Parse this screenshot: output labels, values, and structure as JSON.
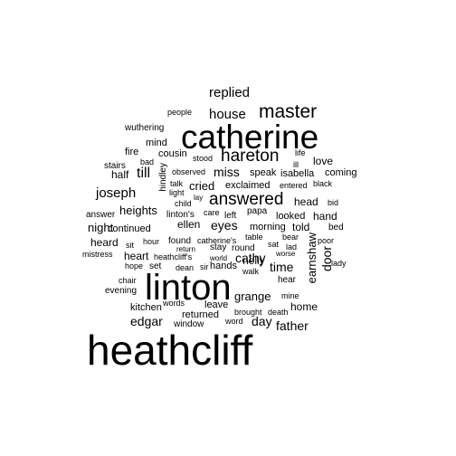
{
  "cloud": {
    "words": [
      {
        "text": "heathcliff",
        "size": 5
      },
      {
        "text": "linton",
        "size": 4
      },
      {
        "text": "catherine",
        "size": 4
      },
      {
        "text": "master",
        "size": 3
      },
      {
        "text": "hareton",
        "size": 3
      },
      {
        "text": "answered",
        "size": 3
      },
      {
        "text": "replied",
        "size": 2
      },
      {
        "text": "house",
        "size": 2
      },
      {
        "text": "joseph",
        "size": 2
      },
      {
        "text": "till",
        "size": 2
      },
      {
        "text": "miss",
        "size": 2
      },
      {
        "text": "cried",
        "size": 2
      },
      {
        "text": "eyes",
        "size": 2
      },
      {
        "text": "cathy",
        "size": 2
      },
      {
        "text": "time",
        "size": 2
      },
      {
        "text": "door",
        "size": 2
      },
      {
        "text": "edgar",
        "size": 2
      },
      {
        "text": "day",
        "size": 2
      },
      {
        "text": "father",
        "size": 2
      },
      {
        "text": "grange",
        "size": 2
      },
      {
        "text": "earnshaw",
        "size": 2
      },
      {
        "text": "heights",
        "size": 2
      },
      {
        "text": "night",
        "size": 2
      },
      {
        "text": "head",
        "size": 1
      },
      {
        "text": "love",
        "size": 1
      },
      {
        "text": "nelly",
        "size": 1
      },
      {
        "text": "ellen",
        "size": 1
      },
      {
        "text": "heard",
        "size": 1
      },
      {
        "text": "heart",
        "size": 1
      },
      {
        "text": "half",
        "size": 1
      },
      {
        "text": "home",
        "size": 1
      },
      {
        "text": "told",
        "size": 1
      },
      {
        "text": "hand",
        "size": 1
      },
      {
        "text": "kitchen",
        "size": 1
      },
      {
        "text": "returned",
        "size": 1
      },
      {
        "text": "exclaimed",
        "size": 1
      },
      {
        "text": "looked",
        "size": 1
      },
      {
        "text": "continued",
        "size": 1
      },
      {
        "text": "leave",
        "size": 1
      },
      {
        "text": "mind",
        "size": 1
      },
      {
        "text": "cousin",
        "size": 1
      },
      {
        "text": "fire",
        "size": 1
      },
      {
        "text": "isabella",
        "size": 1
      },
      {
        "text": "coming",
        "size": 1
      },
      {
        "text": "speak",
        "size": 1
      },
      {
        "text": "morning",
        "size": 1
      },
      {
        "text": "wuthering",
        "size": 0
      },
      {
        "text": "people",
        "size": 0
      },
      {
        "text": "stairs",
        "size": 0
      },
      {
        "text": "bad",
        "size": 0
      },
      {
        "text": "stood",
        "size": 0
      },
      {
        "text": "life",
        "size": 0
      },
      {
        "text": "ill",
        "size": 0
      },
      {
        "text": "observed",
        "size": 0
      },
      {
        "text": "hindley",
        "size": 0
      },
      {
        "text": "talk",
        "size": 0
      },
      {
        "text": "light",
        "size": 0
      },
      {
        "text": "lay",
        "size": 0
      },
      {
        "text": "child",
        "size": 0
      },
      {
        "text": "entered",
        "size": 0
      },
      {
        "text": "black",
        "size": 0
      },
      {
        "text": "bid",
        "size": 0
      },
      {
        "text": "answer",
        "size": 0
      },
      {
        "text": "linton's",
        "size": 0
      },
      {
        "text": "care",
        "size": 0
      },
      {
        "text": "left",
        "size": 0
      },
      {
        "text": "papa",
        "size": 0
      },
      {
        "text": "bed",
        "size": 0
      },
      {
        "text": "hour",
        "size": 0
      },
      {
        "text": "found",
        "size": 0
      },
      {
        "text": "catherine's",
        "size": 0
      },
      {
        "text": "table",
        "size": 0
      },
      {
        "text": "bear",
        "size": 0
      },
      {
        "text": "poor",
        "size": 0
      },
      {
        "text": "sit",
        "size": 0
      },
      {
        "text": "stay",
        "size": 0
      },
      {
        "text": "round",
        "size": 0
      },
      {
        "text": "sat",
        "size": 0
      },
      {
        "text": "lad",
        "size": 0
      },
      {
        "text": "mistress",
        "size": 0
      },
      {
        "text": "heathcliff's",
        "size": 0
      },
      {
        "text": "return",
        "size": 0
      },
      {
        "text": "world",
        "size": 0
      },
      {
        "text": "worse",
        "size": 0
      },
      {
        "text": "lady",
        "size": 0
      },
      {
        "text": "hope",
        "size": 0
      },
      {
        "text": "set",
        "size": 0
      },
      {
        "text": "dean",
        "size": 0
      },
      {
        "text": "sir",
        "size": 0
      },
      {
        "text": "hands",
        "size": 0
      },
      {
        "text": "walk",
        "size": 0
      },
      {
        "text": "hear",
        "size": 0
      },
      {
        "text": "chair",
        "size": 0
      },
      {
        "text": "evening",
        "size": 0
      },
      {
        "text": "mine",
        "size": 0
      },
      {
        "text": "words",
        "size": 0
      },
      {
        "text": "brought",
        "size": 0
      },
      {
        "text": "death",
        "size": 0
      },
      {
        "text": "window",
        "size": 0
      },
      {
        "text": "word",
        "size": 0
      }
    ]
  }
}
